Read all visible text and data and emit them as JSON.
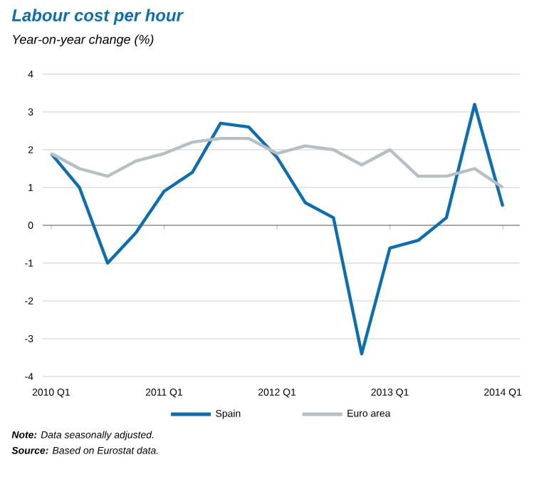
{
  "chart_data": {
    "type": "line",
    "title": "Labour cost per hour",
    "subtitle": "Year-on-year change (%)",
    "categories": [
      "2010 Q1",
      null,
      null,
      null,
      "2011 Q1",
      null,
      null,
      null,
      "2012 Q1",
      null,
      null,
      null,
      "2013 Q1",
      null,
      null,
      null,
      "2014 Q1"
    ],
    "series": [
      {
        "name": "Spain",
        "color": "#0a6eb4",
        "values": [
          1.9,
          1.0,
          -1.0,
          -0.2,
          0.9,
          1.4,
          2.7,
          2.6,
          1.8,
          0.6,
          0.2,
          -3.4,
          -0.6,
          -0.4,
          0.2,
          3.2,
          0.5
        ]
      },
      {
        "name": "Euro area",
        "color": "#b4c0c6",
        "values": [
          1.9,
          1.5,
          1.3,
          1.7,
          1.9,
          2.2,
          2.3,
          2.3,
          1.9,
          2.1,
          2.0,
          1.6,
          2.0,
          1.3,
          1.3,
          1.5,
          1.0
        ]
      }
    ],
    "ylim": [
      -4,
      4
    ],
    "yticks": [
      -4,
      -3,
      -2,
      -1,
      0,
      1,
      2,
      3,
      4
    ],
    "grid": "y",
    "legend": "bottom",
    "marker": "none",
    "line_style": "solid",
    "annotations": [
      "**Note:** Data seasonally adjusted.",
      "**Source:** Based on Eurostat data."
    ]
  }
}
